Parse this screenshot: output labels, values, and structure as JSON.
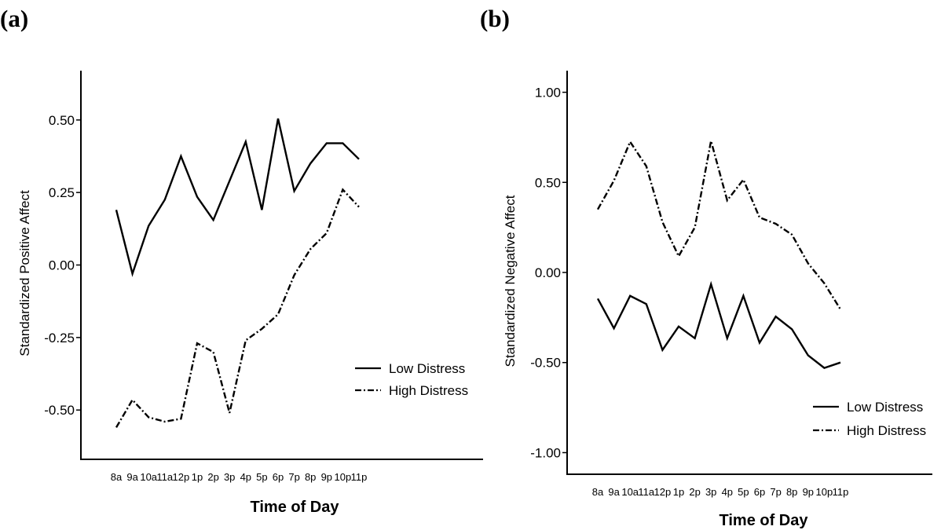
{
  "chart_data": [
    {
      "type": "line",
      "panel_label": "(a)",
      "title": "",
      "xlabel": "Time of Day",
      "ylabel": "Standardized Positive Affect",
      "categories": [
        "8a",
        "9a",
        "10a",
        "11a",
        "12p",
        "1p",
        "2p",
        "3p",
        "4p",
        "5p",
        "6p",
        "7p",
        "8p",
        "9p",
        "10p",
        "11p"
      ],
      "ylim": [
        -0.67,
        0.67
      ],
      "yticks": [
        0.5,
        0.25,
        0.0,
        -0.25,
        -0.5
      ],
      "ytick_labels": [
        "0.50",
        "0.25",
        "0.00",
        "-0.25",
        "-0.50"
      ],
      "grid": false,
      "legend": {
        "placement": "bottom-right",
        "entries": [
          "Low Distress",
          "High Distress"
        ]
      },
      "series": [
        {
          "name": "Low Distress",
          "style": "solid",
          "values": [
            0.19,
            -0.03,
            0.135,
            0.225,
            0.375,
            0.235,
            0.155,
            0.29,
            0.425,
            0.19,
            0.505,
            0.255,
            0.35,
            0.42,
            0.42,
            0.365
          ]
        },
        {
          "name": "High Distress",
          "style": "dash-dot",
          "values": [
            -0.56,
            -0.465,
            -0.525,
            -0.54,
            -0.53,
            -0.27,
            -0.3,
            -0.51,
            -0.26,
            -0.22,
            -0.17,
            -0.035,
            0.055,
            0.11,
            0.26,
            0.2
          ]
        }
      ]
    },
    {
      "type": "line",
      "panel_label": "(b)",
      "title": "",
      "xlabel": "Time of Day",
      "ylabel": "Standardized Negative Affect",
      "categories": [
        "8a",
        "9a",
        "10a",
        "11a",
        "12p",
        "1p",
        "2p",
        "3p",
        "4p",
        "5p",
        "6p",
        "7p",
        "8p",
        "9p",
        "10p",
        "11p"
      ],
      "ylim": [
        -1.12,
        1.12
      ],
      "yticks": [
        1.0,
        0.5,
        0.0,
        -0.5,
        -1.0
      ],
      "ytick_labels": [
        "1.00",
        "0.50",
        "0.00",
        "-0.50",
        "-1.00"
      ],
      "grid": false,
      "legend": {
        "placement": "bottom-right",
        "entries": [
          "Low Distress",
          "High Distress"
        ]
      },
      "series": [
        {
          "name": "Low Distress",
          "style": "solid",
          "values": [
            -0.145,
            -0.31,
            -0.13,
            -0.175,
            -0.43,
            -0.3,
            -0.365,
            -0.065,
            -0.365,
            -0.13,
            -0.39,
            -0.245,
            -0.315,
            -0.46,
            -0.53,
            -0.5
          ]
        },
        {
          "name": "High Distress",
          "style": "dash-dot",
          "values": [
            0.35,
            0.51,
            0.725,
            0.59,
            0.28,
            0.09,
            0.25,
            0.73,
            0.4,
            0.515,
            0.305,
            0.27,
            0.21,
            0.05,
            -0.06,
            -0.205
          ]
        }
      ]
    }
  ]
}
